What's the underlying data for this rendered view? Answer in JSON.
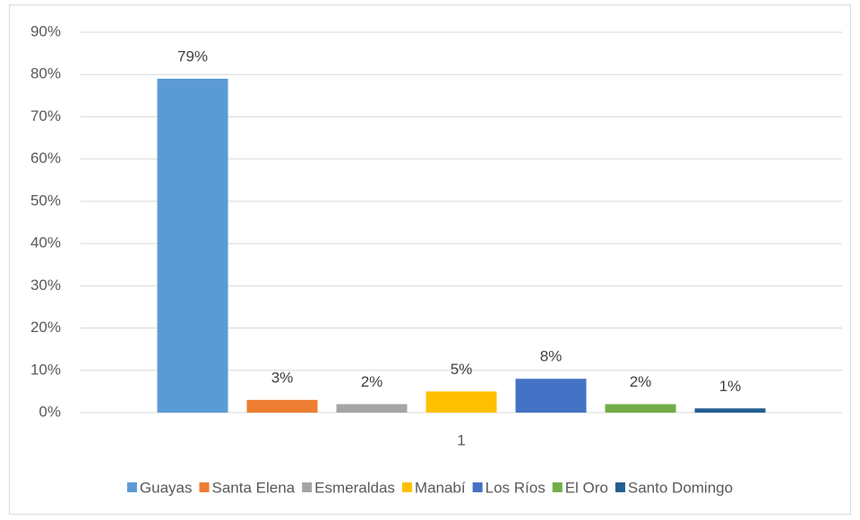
{
  "chart_data": {
    "type": "bar",
    "categories": [
      "1"
    ],
    "series": [
      {
        "name": "Guayas",
        "color": "#5b9bd5",
        "values": [
          79
        ],
        "value_labels": [
          "79%"
        ]
      },
      {
        "name": "Santa Elena",
        "color": "#ed7d31",
        "values": [
          3
        ],
        "value_labels": [
          "3%"
        ]
      },
      {
        "name": "Esmeraldas",
        "color": "#a5a5a5",
        "values": [
          2
        ],
        "value_labels": [
          "2%"
        ]
      },
      {
        "name": "Manabí",
        "color": "#ffc000",
        "values": [
          5
        ],
        "value_labels": [
          "5%"
        ]
      },
      {
        "name": "Los Ríos",
        "color": "#4472c4",
        "values": [
          8
        ],
        "value_labels": [
          "8%"
        ]
      },
      {
        "name": "El Oro",
        "color": "#70ad47",
        "values": [
          2
        ],
        "value_labels": [
          "2%"
        ]
      },
      {
        "name": "Santo Domingo",
        "color": "#255e91",
        "values": [
          1
        ],
        "value_labels": [
          "1%"
        ]
      }
    ],
    "ylim": [
      0,
      90
    ],
    "yticks": [
      {
        "value": 0,
        "label": "0%"
      },
      {
        "value": 10,
        "label": "10%"
      },
      {
        "value": 20,
        "label": "20%"
      },
      {
        "value": 30,
        "label": "30%"
      },
      {
        "value": 40,
        "label": "40%"
      },
      {
        "value": 50,
        "label": "50%"
      },
      {
        "value": 60,
        "label": "60%"
      },
      {
        "value": 70,
        "label": "70%"
      },
      {
        "value": 80,
        "label": "80%"
      },
      {
        "value": 90,
        "label": "90%"
      }
    ],
    "grid": true,
    "legend": "bottom"
  }
}
